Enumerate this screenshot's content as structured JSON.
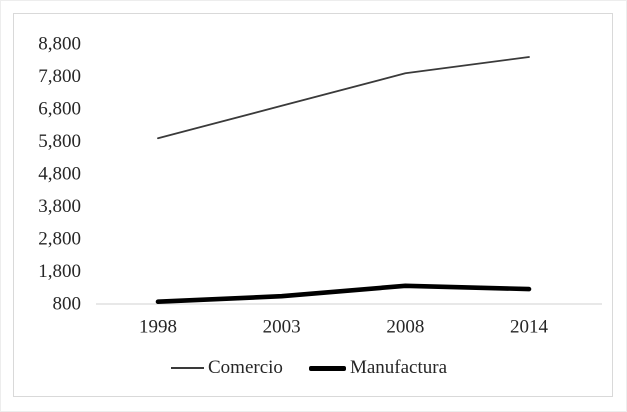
{
  "window": {
    "background_color": "#ffffff",
    "frame_border_color": "#d9d9d9",
    "text_color": "#262626"
  },
  "chart_data": {
    "type": "line",
    "title": "",
    "xlabel": "",
    "ylabel": "",
    "categories": [
      "1998",
      "2003",
      "2008",
      "2014"
    ],
    "series": [
      {
        "name": "Comercio",
        "values": [
          5900,
          6900,
          7900,
          8400
        ],
        "color": "#3a3a3a",
        "stroke_width": 1.8
      },
      {
        "name": "Manufactura",
        "values": [
          870,
          1040,
          1360,
          1260
        ],
        "color": "#000000",
        "stroke_width": 4.6
      }
    ],
    "y_ticks": [
      {
        "label": "8,800",
        "value": 8800
      },
      {
        "label": "7,800",
        "value": 7800
      },
      {
        "label": "6,800",
        "value": 6800
      },
      {
        "label": "5,800",
        "value": 5800
      },
      {
        "label": "4,800",
        "value": 4800
      },
      {
        "label": "3,800",
        "value": 3800
      },
      {
        "label": "2,800",
        "value": 2800
      },
      {
        "label": "1,800",
        "value": 1800
      },
      {
        "label": "800",
        "value": 800
      }
    ],
    "ylim": [
      800,
      8800
    ],
    "grid": "off",
    "baseline_value": 800,
    "axis_line_color": "#d9d9d9",
    "legend_position": "bottom"
  }
}
